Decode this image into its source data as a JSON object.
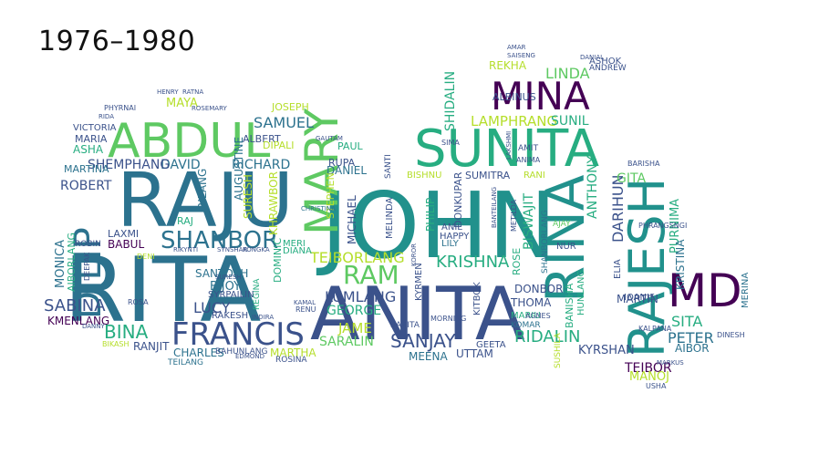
{
  "title": "1976–1980",
  "palette": [
    "#440154",
    "#3b528b",
    "#21918c",
    "#5ec962",
    "#b5de2b",
    "#2c728e",
    "#27ad81"
  ],
  "words": [
    {
      "text": "RITA",
      "color": "#2c728e"
    },
    {
      "text": "JOHN",
      "color": "#21918c"
    },
    {
      "text": "RAJU",
      "color": "#2c728e"
    },
    {
      "text": "ANITA",
      "color": "#3b528b"
    },
    {
      "text": "RAJESH",
      "color": "#21918c"
    },
    {
      "text": "SUNITA",
      "color": "#27ad81"
    },
    {
      "text": "MINA",
      "color": "#440154"
    },
    {
      "text": "RINA",
      "color": "#21918c"
    },
    {
      "text": "ABDUL",
      "color": "#5ec962"
    },
    {
      "text": "MARY",
      "color": "#5ec962"
    },
    {
      "text": "MD",
      "color": "#440154"
    },
    {
      "text": "DILIP",
      "color": "#2c728e"
    },
    {
      "text": "FRANCIS",
      "color": "#3b528b"
    },
    {
      "text": "SHANBOR",
      "color": "#2c728e"
    },
    {
      "text": "KRISHNA",
      "color": "#27ad81"
    },
    {
      "text": "SANJAY",
      "color": "#3b528b"
    },
    {
      "text": "RAM",
      "color": "#5ec962"
    },
    {
      "text": "BINA",
      "color": "#27ad81"
    },
    {
      "text": "RIDALIN",
      "color": "#27ad81"
    },
    {
      "text": "SABINA",
      "color": "#3b528b"
    },
    {
      "text": "TEIBORLANG",
      "color": "#b5de2b"
    },
    {
      "text": "LUMLANG",
      "color": "#3b528b"
    },
    {
      "text": "SAMUEL",
      "color": "#2c728e"
    },
    {
      "text": "LINDA",
      "color": "#5ec962"
    },
    {
      "text": "LAMPHRANG",
      "color": "#b5de2b"
    },
    {
      "text": "SUNIL",
      "color": "#27ad81"
    },
    {
      "text": "MARTIN",
      "color": "#3b528b"
    },
    {
      "text": "PETER",
      "color": "#2c728e"
    },
    {
      "text": "SITA",
      "color": "#27ad81"
    },
    {
      "text": "TEIBOR",
      "color": "#440154"
    },
    {
      "text": "PURNIMA",
      "color": "#27ad81"
    },
    {
      "text": "KRISTINA",
      "color": "#2c728e"
    },
    {
      "text": "DARIHUN",
      "color": "#3b528b"
    },
    {
      "text": "ANTHONY",
      "color": "#27ad81"
    },
    {
      "text": "GITA",
      "color": "#5ec962"
    },
    {
      "text": "RICHARD",
      "color": "#2c728e"
    },
    {
      "text": "DAVID",
      "color": "#2c728e"
    },
    {
      "text": "SHEMPHANG",
      "color": "#3b528b"
    },
    {
      "text": "ROBERT",
      "color": "#3b528b"
    },
    {
      "text": "MICHAEL",
      "color": "#3b528b"
    },
    {
      "text": "GEORGE",
      "color": "#27ad81"
    },
    {
      "text": "LUCY",
      "color": "#3b528b"
    },
    {
      "text": "CHARLES",
      "color": "#2c728e"
    },
    {
      "text": "SANTOSH",
      "color": "#2c728e"
    },
    {
      "text": "BIJOY",
      "color": "#2c728e"
    },
    {
      "text": "MONICA",
      "color": "#2c728e"
    },
    {
      "text": "SHIDALIN",
      "color": "#27ad81"
    },
    {
      "text": "SURESH",
      "color": "#b5de2b"
    },
    {
      "text": "KHRAWBOR",
      "color": "#b5de2b"
    },
    {
      "text": "DANIEL",
      "color": "#2c728e"
    },
    {
      "text": "PHILIP",
      "color": "#27ad81"
    },
    {
      "text": "BISWAJIT",
      "color": "#27ad81"
    },
    {
      "text": "SUMITRA",
      "color": "#3b528b"
    },
    {
      "text": "DONBOR",
      "color": "#3b528b"
    },
    {
      "text": "THOMA",
      "color": "#3b528b"
    },
    {
      "text": "SARALIN",
      "color": "#5ec962"
    },
    {
      "text": "JAME",
      "color": "#b5de2b"
    },
    {
      "text": "UTTAM",
      "color": "#3b528b"
    },
    {
      "text": "MEENA",
      "color": "#2c728e"
    },
    {
      "text": "KYRSHAN",
      "color": "#3b528b"
    },
    {
      "text": "MANOJ",
      "color": "#b5de2b"
    },
    {
      "text": "AIBOR",
      "color": "#2c728e"
    },
    {
      "text": "IOANIS",
      "color": "#3b528b"
    },
    {
      "text": "RANJIT",
      "color": "#3b528b"
    },
    {
      "text": "MARTHA",
      "color": "#b5de2b"
    },
    {
      "text": "KMENLANG",
      "color": "#440154"
    },
    {
      "text": "AIBORLANG",
      "color": "#27ad81"
    },
    {
      "text": "RILANG",
      "color": "#2c728e"
    },
    {
      "text": "AUGUSTINE",
      "color": "#2c728e"
    },
    {
      "text": "LAXMI",
      "color": "#3b528b"
    },
    {
      "text": "BABUL",
      "color": "#440154"
    },
    {
      "text": "RAJ",
      "color": "#27ad81"
    },
    {
      "text": "MAYA",
      "color": "#b5de2b"
    },
    {
      "text": "JOSEPH",
      "color": "#b5de2b"
    },
    {
      "text": "ALBERT",
      "color": "#3b528b"
    },
    {
      "text": "MARIA",
      "color": "#3b528b"
    },
    {
      "text": "ASHA",
      "color": "#27ad81"
    },
    {
      "text": "MARTINA",
      "color": "#2c728e"
    },
    {
      "text": "VICTORIA",
      "color": "#3b528b"
    },
    {
      "text": "PAUL",
      "color": "#27ad81"
    },
    {
      "text": "RUPA",
      "color": "#3b528b"
    },
    {
      "text": "ALBINUS",
      "color": "#3b528b"
    },
    {
      "text": "REKHA",
      "color": "#b5de2b"
    },
    {
      "text": "ASHOK",
      "color": "#3b528b"
    },
    {
      "text": "ANDREW",
      "color": "#3b528b"
    },
    {
      "text": "DIPALI",
      "color": "#b5de2b"
    },
    {
      "text": "STEPHEN",
      "color": "#b5de2b"
    },
    {
      "text": "DOMINIC",
      "color": "#27ad81"
    },
    {
      "text": "DIANA",
      "color": "#27ad81"
    },
    {
      "text": "MERI",
      "color": "#27ad81"
    },
    {
      "text": "SYRPAILIN",
      "color": "#3b528b"
    },
    {
      "text": "KYRMEN",
      "color": "#3b528b"
    },
    {
      "text": "KITBOK",
      "color": "#3b528b"
    },
    {
      "text": "ROSE",
      "color": "#27ad81"
    },
    {
      "text": "DONKUPAR",
      "color": "#3b528b"
    },
    {
      "text": "LILY",
      "color": "#2c728e"
    },
    {
      "text": "HAPPY",
      "color": "#3b528b"
    },
    {
      "text": "ANIL",
      "color": "#3b528b"
    },
    {
      "text": "NUR",
      "color": "#3b528b"
    },
    {
      "text": "AJAY",
      "color": "#5ec962"
    },
    {
      "text": "MARIU",
      "color": "#27ad81"
    },
    {
      "text": "KOMAR",
      "color": "#2c728e"
    },
    {
      "text": "BANISHA",
      "color": "#27ad81"
    },
    {
      "text": "HUNLANG",
      "color": "#27ad81"
    },
    {
      "text": "ELIA",
      "color": "#3b528b"
    },
    {
      "text": "MERINA",
      "color": "#2c728e"
    },
    {
      "text": "GEETA",
      "color": "#3b528b"
    },
    {
      "text": "TEILANG",
      "color": "#2c728e"
    },
    {
      "text": "ROSINA",
      "color": "#3b528b"
    },
    {
      "text": "RAKESH",
      "color": "#3b528b"
    },
    {
      "text": "REGINA",
      "color": "#27ad81"
    },
    {
      "text": "ROBIN",
      "color": "#3b528b"
    },
    {
      "text": "SARITA",
      "color": "#3b528b"
    },
    {
      "text": "AMIT",
      "color": "#3b528b"
    },
    {
      "text": "ANIMA",
      "color": "#3b528b"
    },
    {
      "text": "LAKSHMI",
      "color": "#3b528b"
    },
    {
      "text": "BISHNU",
      "color": "#b5de2b"
    },
    {
      "text": "RANI",
      "color": "#b5de2b"
    },
    {
      "text": "SIMA",
      "color": "#3b528b"
    },
    {
      "text": "MELINDA",
      "color": "#3b528b"
    },
    {
      "text": "SANTI",
      "color": "#3b528b"
    },
    {
      "text": "MORNING",
      "color": "#3b528b"
    },
    {
      "text": "AGNES",
      "color": "#3b528b"
    },
    {
      "text": "GAUTAM",
      "color": "#3b528b"
    },
    {
      "text": "RENU",
      "color": "#3b528b"
    },
    {
      "text": "KAMAL",
      "color": "#3b528b"
    },
    {
      "text": "SUSHILA",
      "color": "#b5de2b"
    },
    {
      "text": "DINESH",
      "color": "#3b528b"
    },
    {
      "text": "USHA",
      "color": "#3b528b"
    },
    {
      "text": "DANNY",
      "color": "#3b528b"
    },
    {
      "text": "BIKASH",
      "color": "#b5de2b"
    },
    {
      "text": "ROSA",
      "color": "#3b528b"
    },
    {
      "text": "EDMOND",
      "color": "#3b528b"
    },
    {
      "text": "INDIRA",
      "color": "#3b528b"
    },
    {
      "text": "DENI",
      "color": "#b5de2b"
    },
    {
      "text": "RIKYNTI",
      "color": "#3b528b"
    },
    {
      "text": "SYNSHAR",
      "color": "#3b528b"
    },
    {
      "text": "KONGKA",
      "color": "#3b528b"
    },
    {
      "text": "DEEPAK",
      "color": "#3b528b"
    },
    {
      "text": "HENRY",
      "color": "#3b528b"
    },
    {
      "text": "RATNA",
      "color": "#3b528b"
    },
    {
      "text": "PHYRNAI",
      "color": "#3b528b"
    },
    {
      "text": "ROSEMARY",
      "color": "#3b528b"
    },
    {
      "text": "RIDA",
      "color": "#3b528b"
    },
    {
      "text": "AMAR",
      "color": "#3b528b"
    },
    {
      "text": "SAISENG",
      "color": "#3b528b"
    },
    {
      "text": "DANIAL",
      "color": "#3b528b"
    },
    {
      "text": "BARISHA",
      "color": "#3b528b"
    },
    {
      "text": "PHRANGSNGI",
      "color": "#3b528b"
    },
    {
      "text": "KALPANA",
      "color": "#3b528b"
    },
    {
      "text": "MARKUS",
      "color": "#3b528b"
    },
    {
      "text": "SURESH",
      "color": "#3b528b"
    },
    {
      "text": "KOROR",
      "color": "#3b528b"
    },
    {
      "text": "BANTEILANG",
      "color": "#3b528b"
    },
    {
      "text": "METILDA",
      "color": "#3b528b"
    },
    {
      "text": "BAHUNLANG",
      "color": "#3b528b"
    },
    {
      "text": "SHANBORLANG",
      "color": "#2c728e"
    },
    {
      "text": "CHRISTINA",
      "color": "#2c728e"
    },
    {
      "text": "ALBINA",
      "color": "#3b528b"
    }
  ]
}
